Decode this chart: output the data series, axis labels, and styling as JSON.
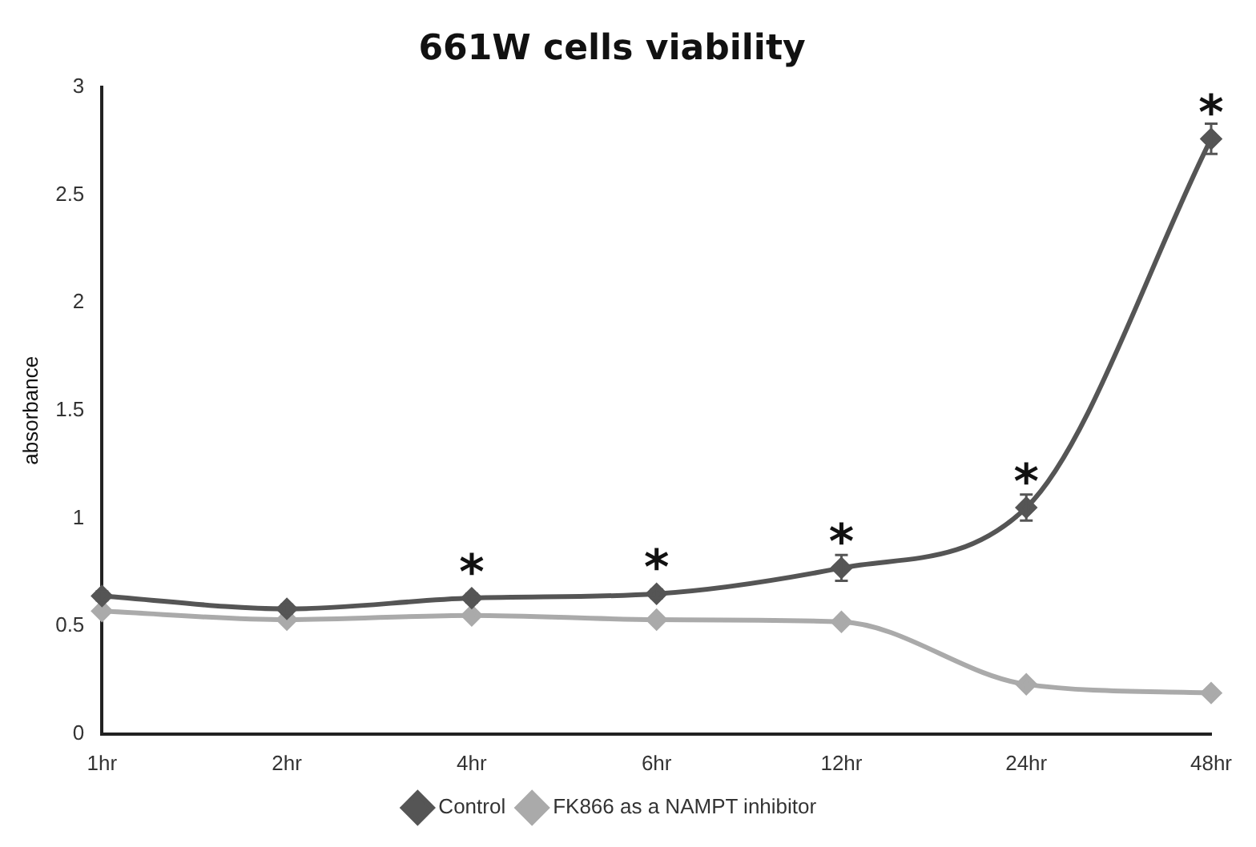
{
  "chart_data": {
    "type": "line",
    "title": "661W cells viability",
    "ylabel": "absorbance",
    "categories": [
      "1hr",
      "2hr",
      "4hr",
      "6hr",
      "12hr",
      "24hr",
      "48hr"
    ],
    "series": [
      {
        "name": "Control",
        "color": "#555555",
        "values": [
          0.64,
          0.58,
          0.63,
          0.65,
          0.77,
          1.05,
          2.76
        ],
        "errors": [
          0.02,
          0.02,
          0.02,
          0.02,
          0.06,
          0.06,
          0.07
        ]
      },
      {
        "name": "FK866 as a NAMPT inhibitor",
        "color": "#aaaaaa",
        "values": [
          0.57,
          0.53,
          0.55,
          0.53,
          0.52,
          0.23,
          0.19
        ]
      }
    ],
    "annotations": [
      {
        "text": "*",
        "x": "4hr",
        "y": 0.63
      },
      {
        "text": "*",
        "x": "6hr",
        "y": 0.65
      },
      {
        "text": "*",
        "x": "12hr",
        "y": 0.77
      },
      {
        "text": "*",
        "x": "24hr",
        "y": 1.05
      },
      {
        "text": "*",
        "x": "48hr",
        "y": 2.76
      }
    ],
    "ylim": [
      0,
      3
    ],
    "yticks": [
      0,
      0.5,
      1,
      1.5,
      2,
      2.5,
      3
    ],
    "grid": false,
    "legend": "bottom",
    "marker": "diamond",
    "line_style": "solid"
  }
}
